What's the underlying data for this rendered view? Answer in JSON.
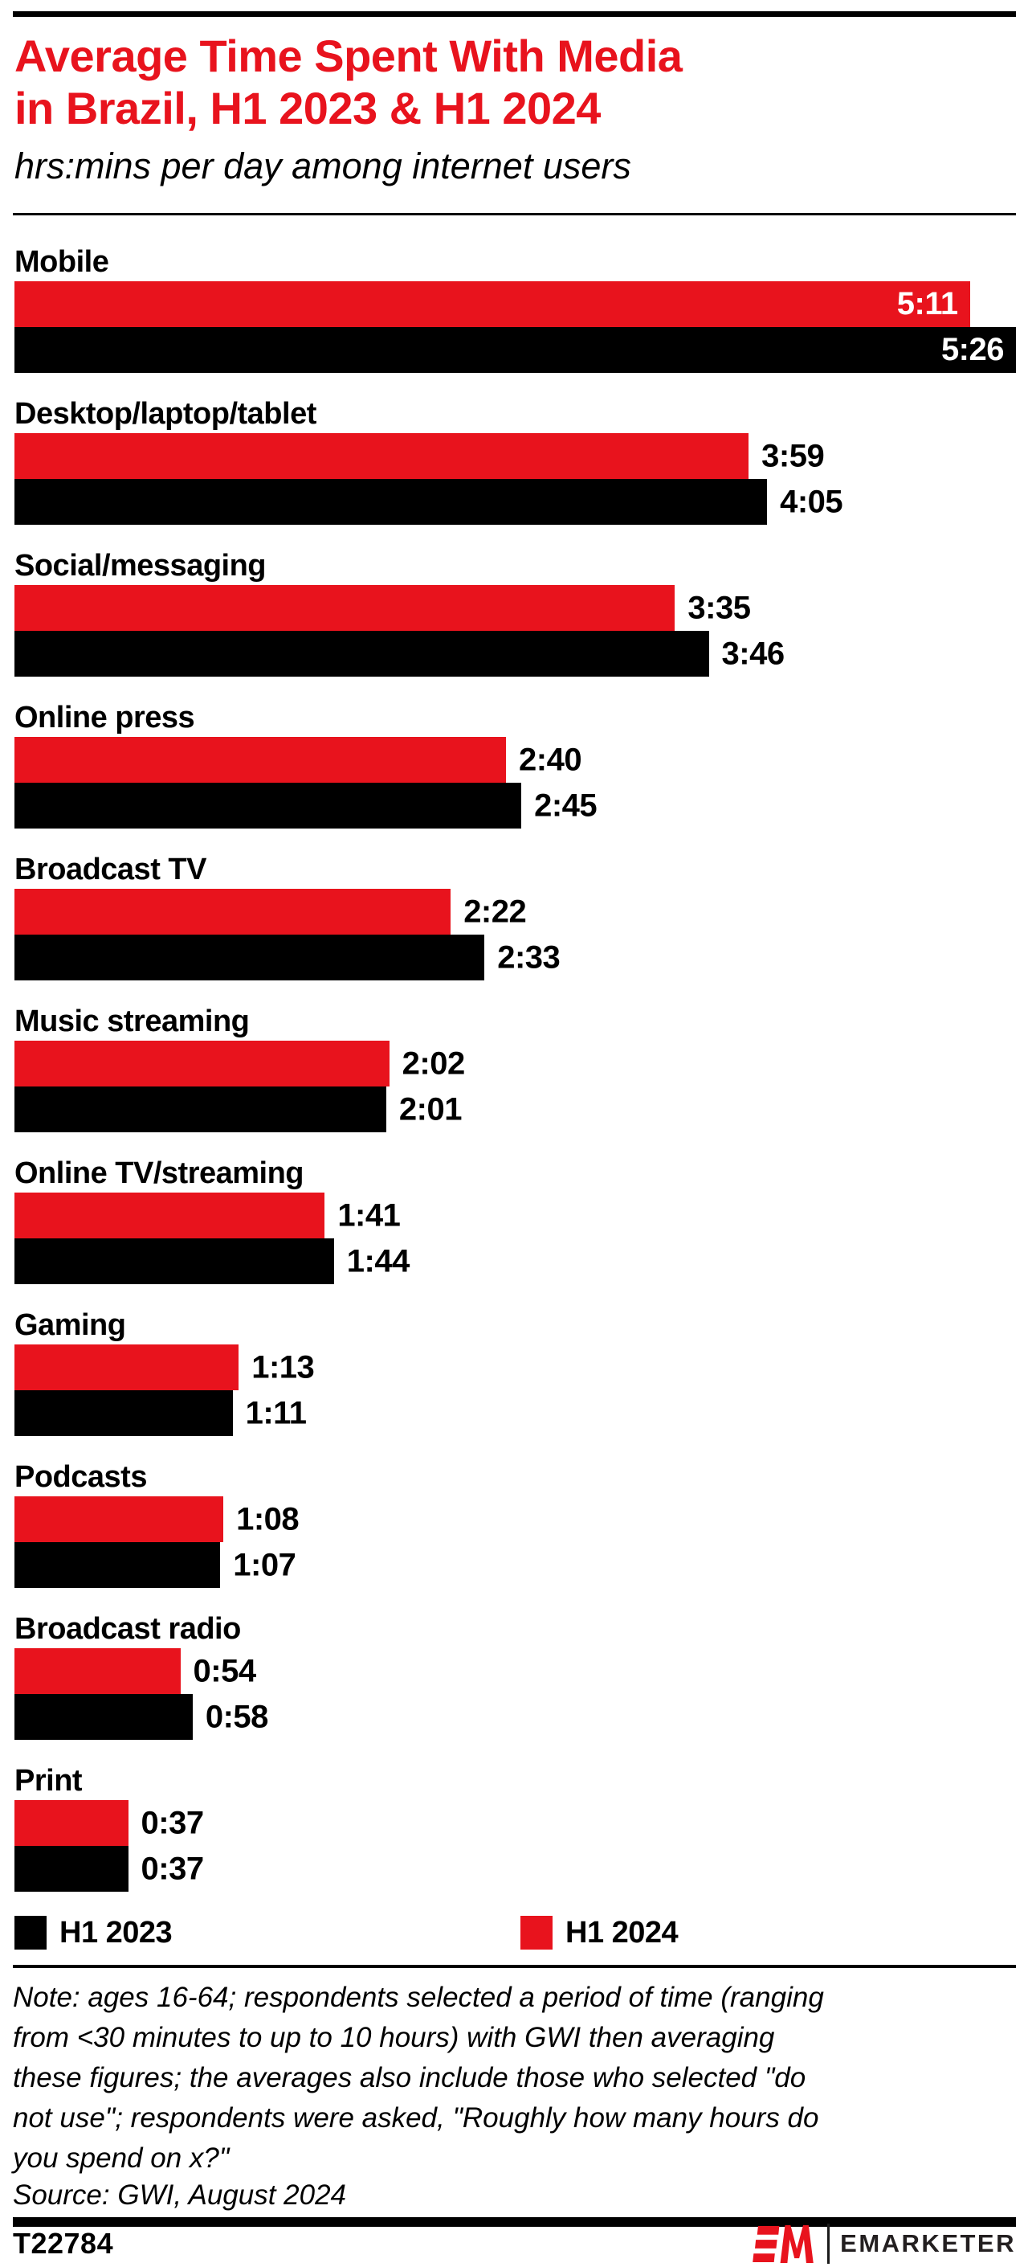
{
  "header": {
    "title_line1": "Average Time Spent With Media",
    "title_line2": "in Brazil, H1 2023 & H1 2024",
    "subtitle": "hrs:mins per day among internet users"
  },
  "colors": {
    "red": "#E8131D",
    "black": "#000000",
    "brand_text": "#231F20"
  },
  "chart_data": {
    "type": "bar",
    "orientation": "horizontal",
    "value_format": "h:mm per day",
    "value_labels_visible": true,
    "grid": false,
    "categories": [
      "Mobile",
      "Desktop/laptop/tablet",
      "Social/messaging",
      "Online press",
      "Broadcast TV",
      "Music streaming",
      "Online TV/streaming",
      "Gaming",
      "Podcasts",
      "Broadcast radio",
      "Print"
    ],
    "series": [
      {
        "name": "H1 2024",
        "color": "red",
        "values": [
          "5:11",
          "3:59",
          "3:35",
          "2:40",
          "2:22",
          "2:02",
          "1:41",
          "1:13",
          "1:08",
          "0:54",
          "0:37"
        ]
      },
      {
        "name": "H1 2023",
        "color": "black",
        "values": [
          "5:26",
          "4:05",
          "3:46",
          "2:45",
          "2:33",
          "2:01",
          "1:44",
          "1:11",
          "1:07",
          "0:58",
          "0:37"
        ]
      }
    ]
  },
  "legend": {
    "items": [
      {
        "label": "H1 2023",
        "color": "black"
      },
      {
        "label": "H1 2024",
        "color": "red"
      }
    ]
  },
  "note": {
    "lines": [
      "Note: ages 16-64; respondents selected a period of time (ranging",
      "from <30 minutes to up to 10 hours) with GWI then averaging",
      "these figures; the averages also include those who selected \"do",
      "not use\"; respondents were asked, \"Roughly how many hours do",
      "you spend on x?\""
    ]
  },
  "source": "Source: GWI, August 2024",
  "footer": {
    "chart_id": "T22784",
    "brand": "EMARKETER"
  }
}
